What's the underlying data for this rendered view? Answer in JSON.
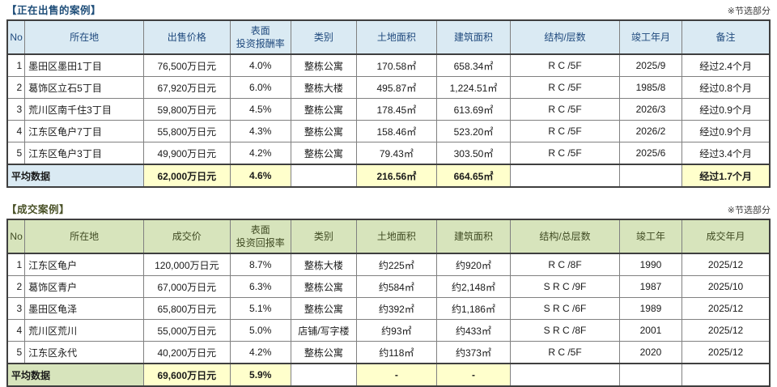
{
  "colors": {
    "avg_highlight": "#FFFFCC",
    "border_thin": "#808080",
    "border_thick": "#3F3F3F",
    "body_text": "#1A1A1A"
  },
  "tables": [
    {
      "title": "【正在出售的案例】",
      "note": "※节选部分",
      "colors": {
        "header_bg": "#DAEAF3",
        "header_text": "#1F497D",
        "title_color": "#1F4E79"
      },
      "headers": [
        "No",
        "所在地",
        "出售价格",
        "表面\n投资报酬率",
        "类别",
        "土地面积",
        "建筑面积",
        "结构/层数",
        "竣工年月",
        "备注"
      ],
      "rows": [
        [
          "1",
          "墨田区墨田1丁目",
          "76,500万日元",
          "4.0%",
          "整栋公寓",
          "170.58㎡",
          "658.34㎡",
          "R C /5F",
          "2025/9",
          "经过2.4个月"
        ],
        [
          "2",
          "葛饰区立石5丁目",
          "67,920万日元",
          "6.0%",
          "整栋大楼",
          "495.87㎡",
          "1,224.51㎡",
          "R C /5F",
          "1985/8",
          "经过0.8个月"
        ],
        [
          "3",
          "荒川区南千住3丁目",
          "59,800万日元",
          "4.5%",
          "整栋公寓",
          "178.45㎡",
          "613.69㎡",
          "R C /5F",
          "2026/3",
          "经过0.9个月"
        ],
        [
          "4",
          "江东区龟户7丁目",
          "55,800万日元",
          "4.3%",
          "整栋公寓",
          "158.46㎡",
          "523.20㎡",
          "R C /5F",
          "2026/2",
          "经过0.9个月"
        ],
        [
          "5",
          "江东区龟户3丁目",
          "49,900万日元",
          "4.2%",
          "整栋公寓",
          "79.43㎡",
          "303.50㎡",
          "R C /5F",
          "2025/6",
          "经过3.4个月"
        ]
      ],
      "average": {
        "label": "平均数据",
        "values": [
          "62,000万日元",
          "4.6%",
          "",
          "216.56㎡",
          "664.65㎡",
          "",
          "",
          "经过1.7个月"
        ]
      }
    },
    {
      "title": "【成交案例】",
      "note": "※节选部分",
      "colors": {
        "header_bg": "#D7E4BC",
        "header_text": "#3F4A22",
        "title_color": "#4A5228"
      },
      "headers": [
        "No",
        "所在地",
        "成交价",
        "表面\n投资回报率",
        "类别",
        "土地面积",
        "建筑面积",
        "结构/总层数",
        "竣工年",
        "成交年月"
      ],
      "rows": [
        [
          "1",
          "江东区龟户",
          "120,000万日元",
          "8.7%",
          "整栋大楼",
          "约225㎡",
          "约920㎡",
          "R C /8F",
          "1990",
          "2025/12"
        ],
        [
          "2",
          "葛饰区青户",
          "67,000万日元",
          "6.3%",
          "整栋公寓",
          "约584㎡",
          "约2,148㎡",
          "S R C /9F",
          "1987",
          "2025/10"
        ],
        [
          "3",
          "墨田区龟泽",
          "65,800万日元",
          "5.1%",
          "整栋公寓",
          "约392㎡",
          "约1,186㎡",
          "S R C /6F",
          "1989",
          "2025/12"
        ],
        [
          "4",
          "荒川区荒川",
          "55,000万日元",
          "5.0%",
          "店铺/写字楼",
          "约93㎡",
          "约433㎡",
          "S R C /8F",
          "2001",
          "2025/12"
        ],
        [
          "5",
          "江东区永代",
          "40,200万日元",
          "4.2%",
          "整栋公寓",
          "约118㎡",
          "约373㎡",
          "R C /5F",
          "2020",
          "2025/12"
        ]
      ],
      "average": {
        "label": "平均数据",
        "values": [
          "69,600万日元",
          "5.9%",
          "",
          "-",
          "-",
          "",
          "",
          ""
        ]
      }
    }
  ]
}
